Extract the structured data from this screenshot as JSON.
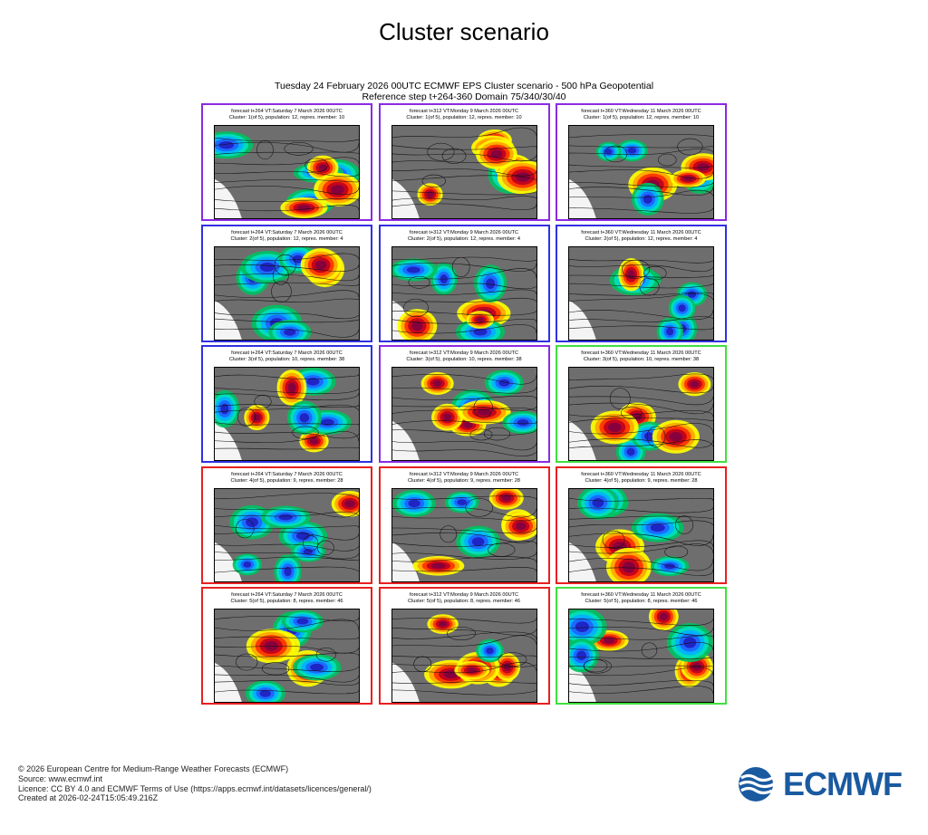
{
  "title": "Cluster scenario",
  "subtitle_line1": "Tuesday 24 February 2026 00UTC ECMWF EPS Cluster scenario - 500 hPa Geopotential",
  "subtitle_line2": "Reference step t+264-360 Domain 75/340/30/40",
  "colors": {
    "border_purple": "#8a2be2",
    "border_blue": "#3030e0",
    "border_red": "#e82020",
    "border_green": "#40e040",
    "logo_blue": "#1a5aa0",
    "anomaly_positive": [
      "#ffff00",
      "#ffa500",
      "#ff3000",
      "#c0001e",
      "#800040"
    ],
    "anomaly_negative": [
      "#00c060",
      "#00e0c0",
      "#00b0ff",
      "#1e64ff",
      "#2020c0"
    ],
    "background_map": "#6e6e6e"
  },
  "rows": [
    {
      "cluster": 1,
      "panels": [
        {
          "line1": "forecast t+264 VT:Saturday 7 March 2026 00UTC",
          "line2": "Cluster: 1(of 5), population: 12, repres. member: 10",
          "border": "purple"
        },
        {
          "line1": "forecast t+312 VT:Monday 9 March 2026 00UTC",
          "line2": "Cluster: 1(of 5), population: 12, repres. member: 10",
          "border": "purple"
        },
        {
          "line1": "forecast t+360 VT:Wednesday 11 March 2026 00UTC",
          "line2": "Cluster: 1(of 5), population: 12, repres. member: 10",
          "border": "purple"
        }
      ]
    },
    {
      "cluster": 2,
      "panels": [
        {
          "line1": "forecast t+264 VT:Saturday 7 March 2026 00UTC",
          "line2": "Cluster: 2(of 5), population: 12, repres. member: 4",
          "border": "blue"
        },
        {
          "line1": "forecast t+312 VT:Monday 9 March 2026 00UTC",
          "line2": "Cluster: 2(of 5), population: 12, repres. member: 4",
          "border": "blue"
        },
        {
          "line1": "forecast t+360 VT:Wednesday 11 March 2026 00UTC",
          "line2": "Cluster: 2(of 5), population: 12, repres. member: 4",
          "border": "blue"
        }
      ]
    },
    {
      "cluster": 3,
      "panels": [
        {
          "line1": "forecast t+264 VT:Saturday 7 March 2026 00UTC",
          "line2": "Cluster: 3(of 5), population: 10, repres. member: 38",
          "border": "blue"
        },
        {
          "line1": "forecast t+312 VT:Monday 9 March 2026 00UTC",
          "line2": "Cluster: 3(of 5), population: 10, repres. member: 38",
          "border": "purple"
        },
        {
          "line1": "forecast t+360 VT:Wednesday 11 March 2026 00UTC",
          "line2": "Cluster: 3(of 5), population: 10, repres. member: 38",
          "border": "green"
        }
      ]
    },
    {
      "cluster": 4,
      "panels": [
        {
          "line1": "forecast t+264 VT:Saturday 7 March 2026 00UTC",
          "line2": "Cluster: 4(of 5), population: 9, repres. member: 28",
          "border": "red"
        },
        {
          "line1": "forecast t+312 VT:Monday 9 March 2026 00UTC",
          "line2": "Cluster: 4(of 5), population: 9, repres. member: 28",
          "border": "red"
        },
        {
          "line1": "forecast t+360 VT:Wednesday 11 March 2026 00UTC",
          "line2": "Cluster: 4(of 5), population: 9, repres. member: 28",
          "border": "red"
        }
      ]
    },
    {
      "cluster": 5,
      "panels": [
        {
          "line1": "forecast t+264 VT:Saturday 7 March 2026 00UTC",
          "line2": "Cluster: 5(of 5), population: 8, repres. member: 46",
          "border": "red"
        },
        {
          "line1": "forecast t+312 VT:Monday 9 March 2026 00UTC",
          "line2": "Cluster: 5(of 5), population: 8, repres. member: 46",
          "border": "red"
        },
        {
          "line1": "forecast t+360 VT:Wednesday 11 March 2026 00UTC",
          "line2": "Cluster: 5(of 5), population: 8, repres. member: 46",
          "border": "green"
        }
      ]
    }
  ],
  "footer": {
    "copyright": "© 2026 European Centre for Medium-Range Weather Forecasts (ECMWF)",
    "source": "Source: www.ecmwf.int",
    "licence": "Licence: CC BY 4.0 and ECMWF Terms of Use (https://apps.ecmwf.int/datasets/licences/general/)",
    "created": "Created at 2026-02-24T15:05:49.216Z"
  },
  "logo": {
    "text": "ECMWF",
    "icon": "ecmwf-waves-icon"
  }
}
